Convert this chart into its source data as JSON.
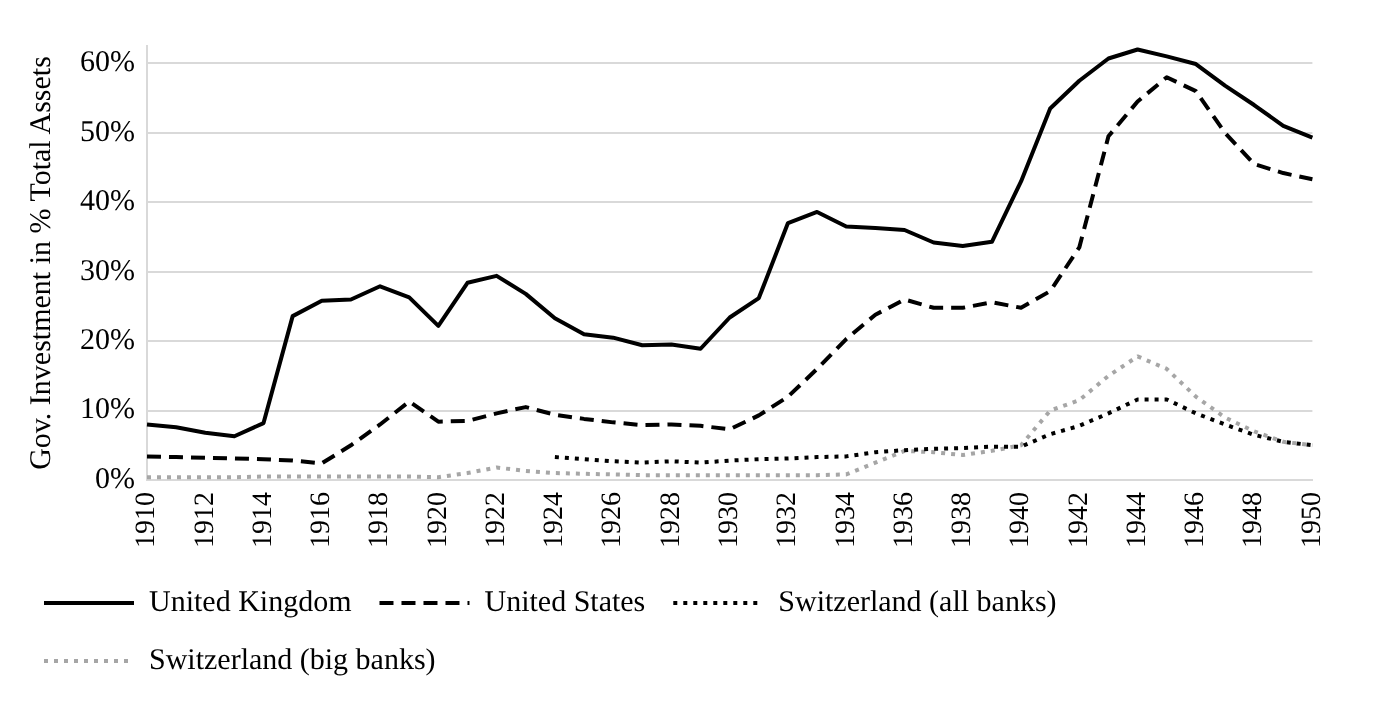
{
  "chart_data": {
    "type": "line",
    "ylabel": "Gov. Investment in % Total Assets",
    "categories": [
      "1910",
      null,
      "1912",
      null,
      "1914",
      null,
      "1916",
      null,
      "1918",
      null,
      "1920",
      null,
      "1922",
      null,
      "1924",
      null,
      "1926",
      null,
      "1928",
      null,
      "1930",
      null,
      "1932",
      null,
      "1934",
      null,
      "1936",
      null,
      "1938",
      null,
      "1940",
      null,
      "1942",
      null,
      "1944",
      null,
      "1946",
      null,
      "1948",
      null,
      "1950"
    ],
    "series": [
      {
        "name": "United Kingdom",
        "color": "#000000",
        "line_style": "solid",
        "values": [
          8,
          7.6,
          6.8,
          6.3,
          8.2,
          23.6,
          25.8,
          26,
          27.9,
          26.3,
          22.2,
          28.4,
          29.4,
          26.8,
          23.3,
          21,
          20.5,
          19.4,
          19.5,
          18.9,
          23.4,
          26.2,
          37,
          38.6,
          36.5,
          36.3,
          36,
          34.2,
          33.7,
          34.3,
          43,
          53.5,
          57.5,
          60.7,
          62,
          61,
          59.9,
          56.8,
          54,
          51,
          49.3
        ]
      },
      {
        "name": "United States",
        "color": "#000000",
        "line_style": "dashed",
        "values": [
          3.4,
          3.3,
          3.2,
          3.1,
          3,
          2.8,
          2.4,
          5,
          8,
          11.3,
          8.4,
          8.5,
          9.6,
          10.5,
          9.4,
          8.8,
          8.3,
          7.9,
          8,
          7.8,
          7.3,
          9.3,
          12,
          16,
          20.3,
          23.8,
          26,
          24.8,
          24.8,
          25.6,
          24.8,
          27.2,
          33.5,
          49.5,
          54.5,
          58,
          56,
          50,
          45.5,
          44.2,
          43.3
        ]
      },
      {
        "name": "Switzerland (all banks)",
        "color": "#000000",
        "line_style": "dotted",
        "values": [
          null,
          null,
          null,
          null,
          null,
          null,
          null,
          null,
          null,
          null,
          null,
          null,
          null,
          null,
          3.3,
          3,
          2.7,
          2.5,
          2.7,
          2.5,
          2.8,
          3,
          3.1,
          3.3,
          3.4,
          4,
          4.3,
          4.5,
          4.6,
          4.8,
          4.8,
          6.6,
          7.8,
          9.6,
          11.6,
          11.6,
          9.6,
          8,
          6.5,
          5.5,
          5
        ]
      },
      {
        "name": "Switzerland (big banks)",
        "color": "#a6a6a6",
        "line_style": "dotted",
        "values": [
          0.4,
          0.4,
          0.4,
          0.4,
          0.5,
          0.5,
          0.5,
          0.5,
          0.5,
          0.5,
          0.4,
          1,
          1.8,
          1.3,
          1,
          0.9,
          0.8,
          0.7,
          0.7,
          0.7,
          0.7,
          0.7,
          0.7,
          0.7,
          0.8,
          2.5,
          4.2,
          4,
          3.6,
          4.2,
          5,
          10,
          11.5,
          15,
          17.8,
          16,
          12,
          9,
          7,
          5.5,
          5
        ]
      }
    ],
    "ylim": [
      0,
      62.5
    ],
    "yticks": [
      {
        "value": 0,
        "label": "0%"
      },
      {
        "value": 10,
        "label": "10%"
      },
      {
        "value": 20,
        "label": "20%"
      },
      {
        "value": 30,
        "label": "30%"
      },
      {
        "value": 40,
        "label": "40%"
      },
      {
        "value": 50,
        "label": "50%"
      },
      {
        "value": 60,
        "label": "60%"
      }
    ],
    "grid": "y",
    "legend": "bottom",
    "marker": "none"
  }
}
